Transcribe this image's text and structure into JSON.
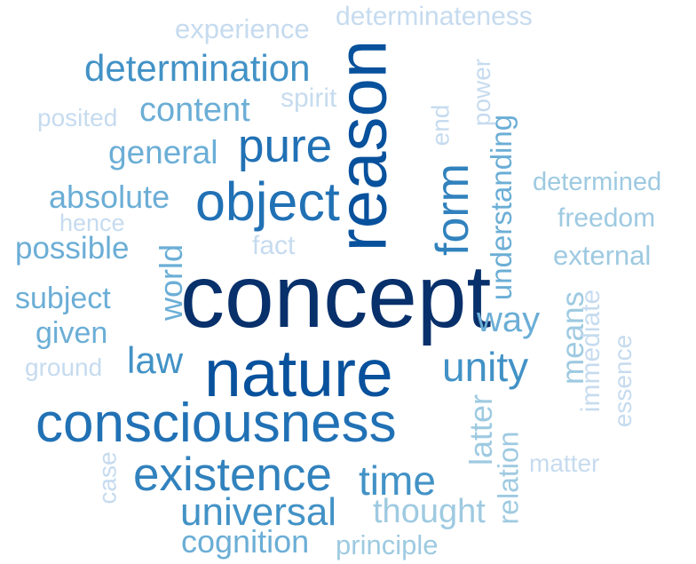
{
  "words": [
    {
      "text": "concept",
      "color": "#08306b",
      "rotated": false
    },
    {
      "text": "reason",
      "color": "#08519c",
      "rotated": true
    },
    {
      "text": "nature",
      "color": "#08519c",
      "rotated": false
    },
    {
      "text": "consciousness",
      "color": "#2171b5",
      "rotated": false
    },
    {
      "text": "object",
      "color": "#2171b5",
      "rotated": false
    },
    {
      "text": "pure",
      "color": "#2171b5",
      "rotated": false
    },
    {
      "text": "form",
      "color": "#3182bd",
      "rotated": true
    },
    {
      "text": "existence",
      "color": "#3182bd",
      "rotated": false
    },
    {
      "text": "unity",
      "color": "#4292c6",
      "rotated": false
    },
    {
      "text": "determination",
      "color": "#4292c6",
      "rotated": false
    },
    {
      "text": "time",
      "color": "#4292c6",
      "rotated": false
    },
    {
      "text": "universal",
      "color": "#4292c6",
      "rotated": false
    },
    {
      "text": "law",
      "color": "#4292c6",
      "rotated": false
    },
    {
      "text": "content",
      "color": "#6baed6",
      "rotated": false
    },
    {
      "text": "general",
      "color": "#6baed6",
      "rotated": false
    },
    {
      "text": "absolute",
      "color": "#6baed6",
      "rotated": false
    },
    {
      "text": "possible",
      "color": "#6baed6",
      "rotated": false
    },
    {
      "text": "subject",
      "color": "#6baed6",
      "rotated": false
    },
    {
      "text": "given",
      "color": "#6baed6",
      "rotated": false
    },
    {
      "text": "world",
      "color": "#6baed6",
      "rotated": true
    },
    {
      "text": "way",
      "color": "#6baed6",
      "rotated": false
    },
    {
      "text": "understanding",
      "color": "#6baed6",
      "rotated": true
    },
    {
      "text": "thought",
      "color": "#9ecae1",
      "rotated": false
    },
    {
      "text": "cognition",
      "color": "#6baed6",
      "rotated": false
    },
    {
      "text": "latter",
      "color": "#9ecae1",
      "rotated": true
    },
    {
      "text": "relation",
      "color": "#9ecae1",
      "rotated": true
    },
    {
      "text": "means",
      "color": "#9ecae1",
      "rotated": true
    },
    {
      "text": "external",
      "color": "#9ecae1",
      "rotated": false
    },
    {
      "text": "freedom",
      "color": "#9ecae1",
      "rotated": false
    },
    {
      "text": "determined",
      "color": "#9ecae1",
      "rotated": false
    },
    {
      "text": "principle",
      "color": "#9ecae1",
      "rotated": false
    },
    {
      "text": "matter",
      "color": "#c6dbef",
      "rotated": false
    },
    {
      "text": "immediate",
      "color": "#c6dbef",
      "rotated": true
    },
    {
      "text": "essence",
      "color": "#c6dbef",
      "rotated": true
    },
    {
      "text": "case",
      "color": "#c6dbef",
      "rotated": true
    },
    {
      "text": "ground",
      "color": "#c6dbef",
      "rotated": false
    },
    {
      "text": "fact",
      "color": "#c6dbef",
      "rotated": false
    },
    {
      "text": "hence",
      "color": "#c6dbef",
      "rotated": false
    },
    {
      "text": "posited",
      "color": "#c6dbef",
      "rotated": false
    },
    {
      "text": "spirit",
      "color": "#c6dbef",
      "rotated": false
    },
    {
      "text": "end",
      "color": "#c6dbef",
      "rotated": true
    },
    {
      "text": "power",
      "color": "#c6dbef",
      "rotated": true
    },
    {
      "text": "experience",
      "color": "#c6dbef",
      "rotated": false
    },
    {
      "text": "determinateness",
      "color": "#c6dbef",
      "rotated": false
    }
  ]
}
